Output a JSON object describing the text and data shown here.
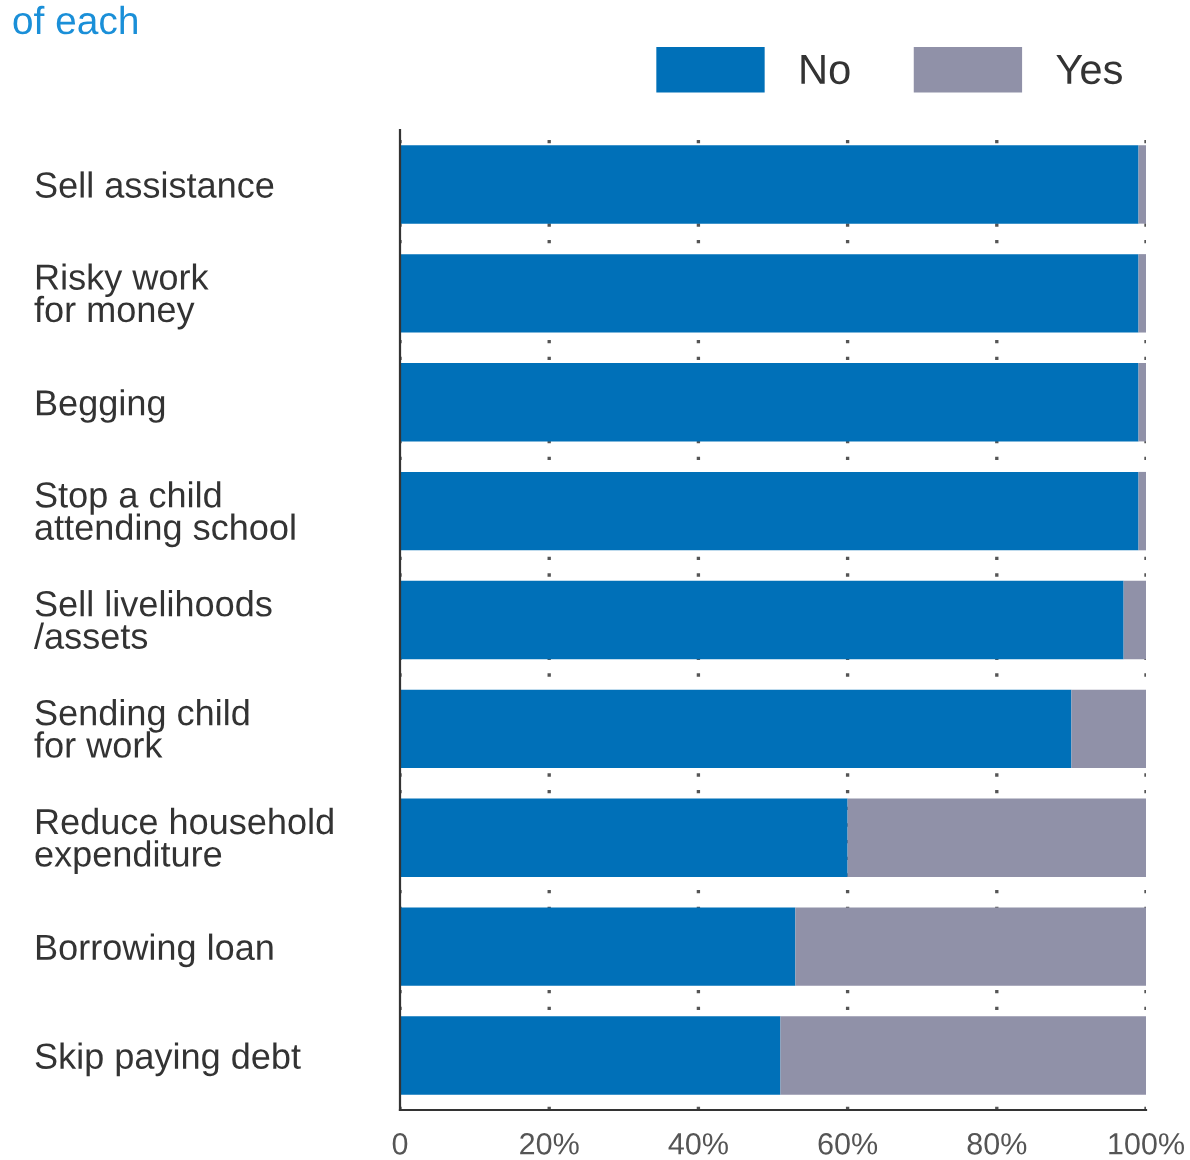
{
  "chart_data": {
    "type": "bar",
    "title": "of each",
    "orientation": "horizontal",
    "stacked": true,
    "categories": [
      "Sell assistance",
      "Risky work\nfor money",
      "Begging",
      "Stop a child\nattending school",
      "Sell livelihoods\n/assets",
      "Sending child\nfor work",
      "Reduce household\nexpenditure",
      "Borrowing loan",
      "Skip paying debt"
    ],
    "series": [
      {
        "name": "No",
        "color": "#0070b8",
        "values": [
          99,
          99,
          99,
          99,
          97,
          90,
          60,
          53,
          51
        ]
      },
      {
        "name": "Yes",
        "color": "#9091a8",
        "values": [
          1,
          1,
          1,
          1,
          3,
          10,
          40,
          47,
          49
        ]
      }
    ],
    "xlim": [
      0,
      100
    ],
    "xticks": [
      0,
      {
        "value": 20,
        "label": "20%"
      },
      {
        "value": 40,
        "label": "40%"
      },
      {
        "value": 60,
        "label": "60%"
      },
      {
        "value": 80,
        "label": "80%"
      },
      {
        "value": 100,
        "label": "100%"
      }
    ],
    "grid": "x",
    "legend": "top right"
  }
}
